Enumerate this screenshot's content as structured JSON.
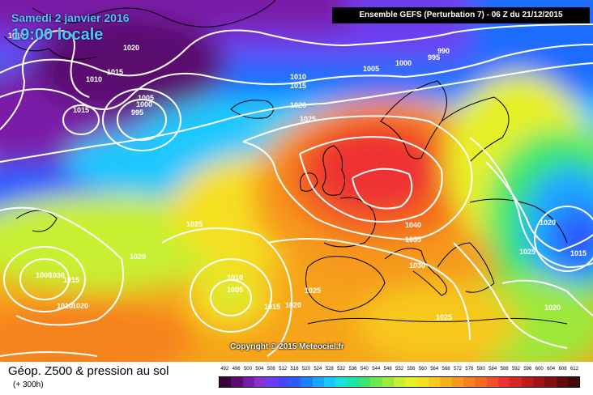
{
  "header": {
    "date": "Samedi 2 janvier 2016",
    "time": "19:00 locale",
    "run_info": "Ensemble GEFS  (Perturbation 7)  -  06 Z du 21/12/2015"
  },
  "map": {
    "copyright": "Copyright © 2015 Meteociel.fr",
    "pressure_labels": [
      "1010",
      "1015",
      "1020",
      "1005",
      "1000",
      "995",
      "990",
      "995",
      "1000",
      "1005",
      "1010",
      "1015",
      "1020",
      "1025",
      "1010",
      "1015",
      "1020",
      "1025",
      "1030",
      "1035",
      "1040",
      "1020",
      "1025",
      "1015",
      "1020",
      "1025",
      "1030",
      "1000",
      "1015",
      "1010",
      "1020",
      "1010",
      "1005",
      "1015",
      "1020",
      "1025"
    ],
    "colors": {
      "low_purple": "#7a1aa8",
      "blue": "#1a3cff",
      "green": "#9ee83a",
      "yellow": "#f5e020",
      "orange": "#f6a51a",
      "red": "#ee3030",
      "isobars": "#ffffff",
      "coastlines": "#000000"
    }
  },
  "footer": {
    "parameter": "Géop. Z500 & pression au sol",
    "lead_time": "(+ 300h)",
    "scale_values": [
      "492",
      "496",
      "500",
      "504",
      "508",
      "512",
      "516",
      "520",
      "524",
      "528",
      "532",
      "536",
      "540",
      "544",
      "548",
      "552",
      "556",
      "560",
      "564",
      "568",
      "572",
      "576",
      "580",
      "584",
      "588",
      "592",
      "596",
      "600",
      "604",
      "608",
      "612"
    ],
    "scale_colors": [
      "#3c003c",
      "#5a0a6e",
      "#7a1aa8",
      "#8a2ed0",
      "#6e3cf0",
      "#4646ff",
      "#2a5aff",
      "#1a80ff",
      "#1aa6ff",
      "#1ac8ff",
      "#1ae0e0",
      "#1ae6a6",
      "#3ce66e",
      "#6ee84a",
      "#9ee83a",
      "#c8f032",
      "#e6f028",
      "#f5e020",
      "#f7c81e",
      "#f6b01c",
      "#f69a1a",
      "#f6821a",
      "#f46a1e",
      "#f05028",
      "#ee3030",
      "#d82424",
      "#c01a1a",
      "#a01414",
      "#821010",
      "#640c0c",
      "#460808"
    ]
  }
}
